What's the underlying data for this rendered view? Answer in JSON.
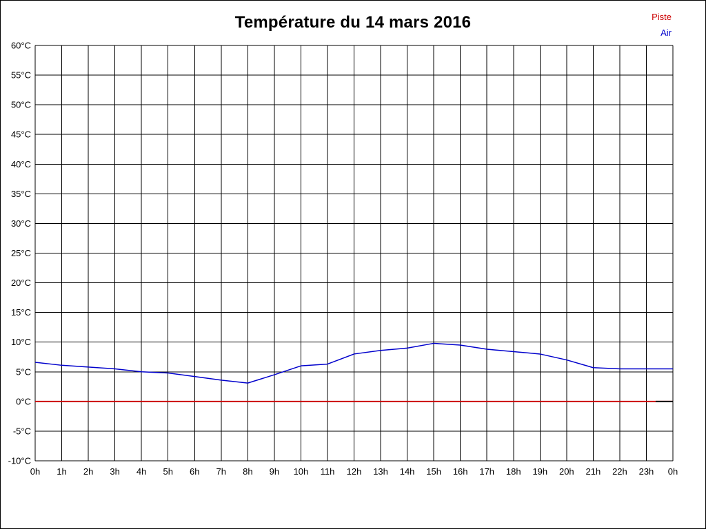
{
  "title": "Température du 14 mars 2016",
  "legend": [
    {
      "label": "Piste",
      "color": "#cc0000"
    },
    {
      "label": "Air",
      "color": "#0000cc"
    }
  ],
  "chart_data": {
    "type": "line",
    "title": "Température du 14 mars 2016",
    "xlabel": "",
    "ylabel": "",
    "ylim": [
      -10,
      60
    ],
    "y_tick_step": 5,
    "y_tick_suffix": "°C",
    "grid": true,
    "grid_color": "#000000",
    "legend_position": "top-right",
    "x_tick_labels": [
      "0h",
      "1h",
      "2h",
      "3h",
      "4h",
      "5h",
      "6h",
      "7h",
      "8h",
      "9h",
      "10h",
      "11h",
      "12h",
      "13h",
      "14h",
      "15h",
      "16h",
      "17h",
      "18h",
      "19h",
      "20h",
      "21h",
      "22h",
      "23h",
      "0h"
    ],
    "series": [
      {
        "name": "Piste",
        "color": "#cc0000",
        "width": 2,
        "values": [
          0,
          0,
          0,
          0,
          0,
          0,
          0,
          0,
          0,
          0,
          0,
          0,
          0,
          0,
          0,
          0,
          0,
          0,
          0,
          0,
          0,
          0,
          0,
          0,
          0
        ]
      },
      {
        "name": "Air",
        "color": "#0000cc",
        "width": 1.5,
        "values": [
          6.6,
          6.1,
          5.8,
          5.5,
          5.0,
          4.8,
          4.2,
          3.6,
          3.1,
          4.5,
          6.0,
          6.3,
          8.0,
          8.6,
          9.0,
          9.8,
          9.5,
          8.8,
          8.4,
          8.0,
          7.0,
          5.7,
          5.5,
          5.5,
          5.5
        ]
      }
    ],
    "trailing_segment": {
      "color": "#000000",
      "width": 2,
      "y": 0,
      "x_start": 23.35,
      "x_end": 24
    }
  }
}
